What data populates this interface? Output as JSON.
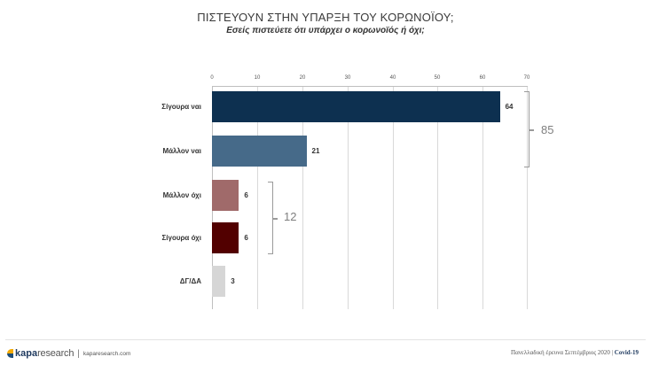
{
  "header": {
    "title": "ΠΙΣΤΕΥΟΥΝ ΣΤΗΝ ΥΠΑΡΞΗ ΤΟΥ ΚΟΡΩΝΟΪΟΥ;",
    "subtitle": "Εσείς πιστεύετε ότι υπάρχει ο κορωνοϊός ή όχι;"
  },
  "chart_data": {
    "type": "bar",
    "orientation": "horizontal",
    "title": "ΠΙΣΤΕΥΟΥΝ ΣΤΗΝ ΥΠΑΡΞΗ ΤΟΥ ΚΟΡΩΝΟΪΟΥ;",
    "subtitle": "Εσείς πιστεύετε ότι υπάρχει ο κορωνοϊός ή όχι;",
    "categories": [
      "Σίγουρα ναι",
      "Μάλλον ναι",
      "Μάλλον όχι",
      "Σίγουρα όχι",
      "ΔΓ/ΔΑ"
    ],
    "values": [
      64,
      21,
      6,
      6,
      3
    ],
    "value_labels": [
      "64",
      "21",
      "6",
      "6",
      "3"
    ],
    "colors": [
      "#0d3050",
      "#466a89",
      "#a06a6a",
      "#520000",
      "#d6d6d6"
    ],
    "xlabel": "",
    "ylabel": "",
    "xlim": [
      0,
      70
    ],
    "ticks": [
      "0",
      "10",
      "20",
      "30",
      "40",
      "50",
      "60",
      "70"
    ],
    "tick_position": "top",
    "grid": true,
    "legend": null,
    "annotations": [
      {
        "type": "bracket",
        "spans": [
          "Σίγουρα ναι",
          "Μάλλον ναι"
        ],
        "label": "85"
      },
      {
        "type": "bracket",
        "spans": [
          "Μάλλον όχι",
          "Σίγουρα όχι"
        ],
        "label": "12"
      }
    ]
  },
  "footer": {
    "brand_bold": "kapa",
    "brand_light": "research",
    "separator": "|",
    "url": "kaparesearch.com",
    "survey": "Πανελλαδική έρευνα Σεπτέμβριος 2020 | ",
    "topic": "Covid-19"
  }
}
